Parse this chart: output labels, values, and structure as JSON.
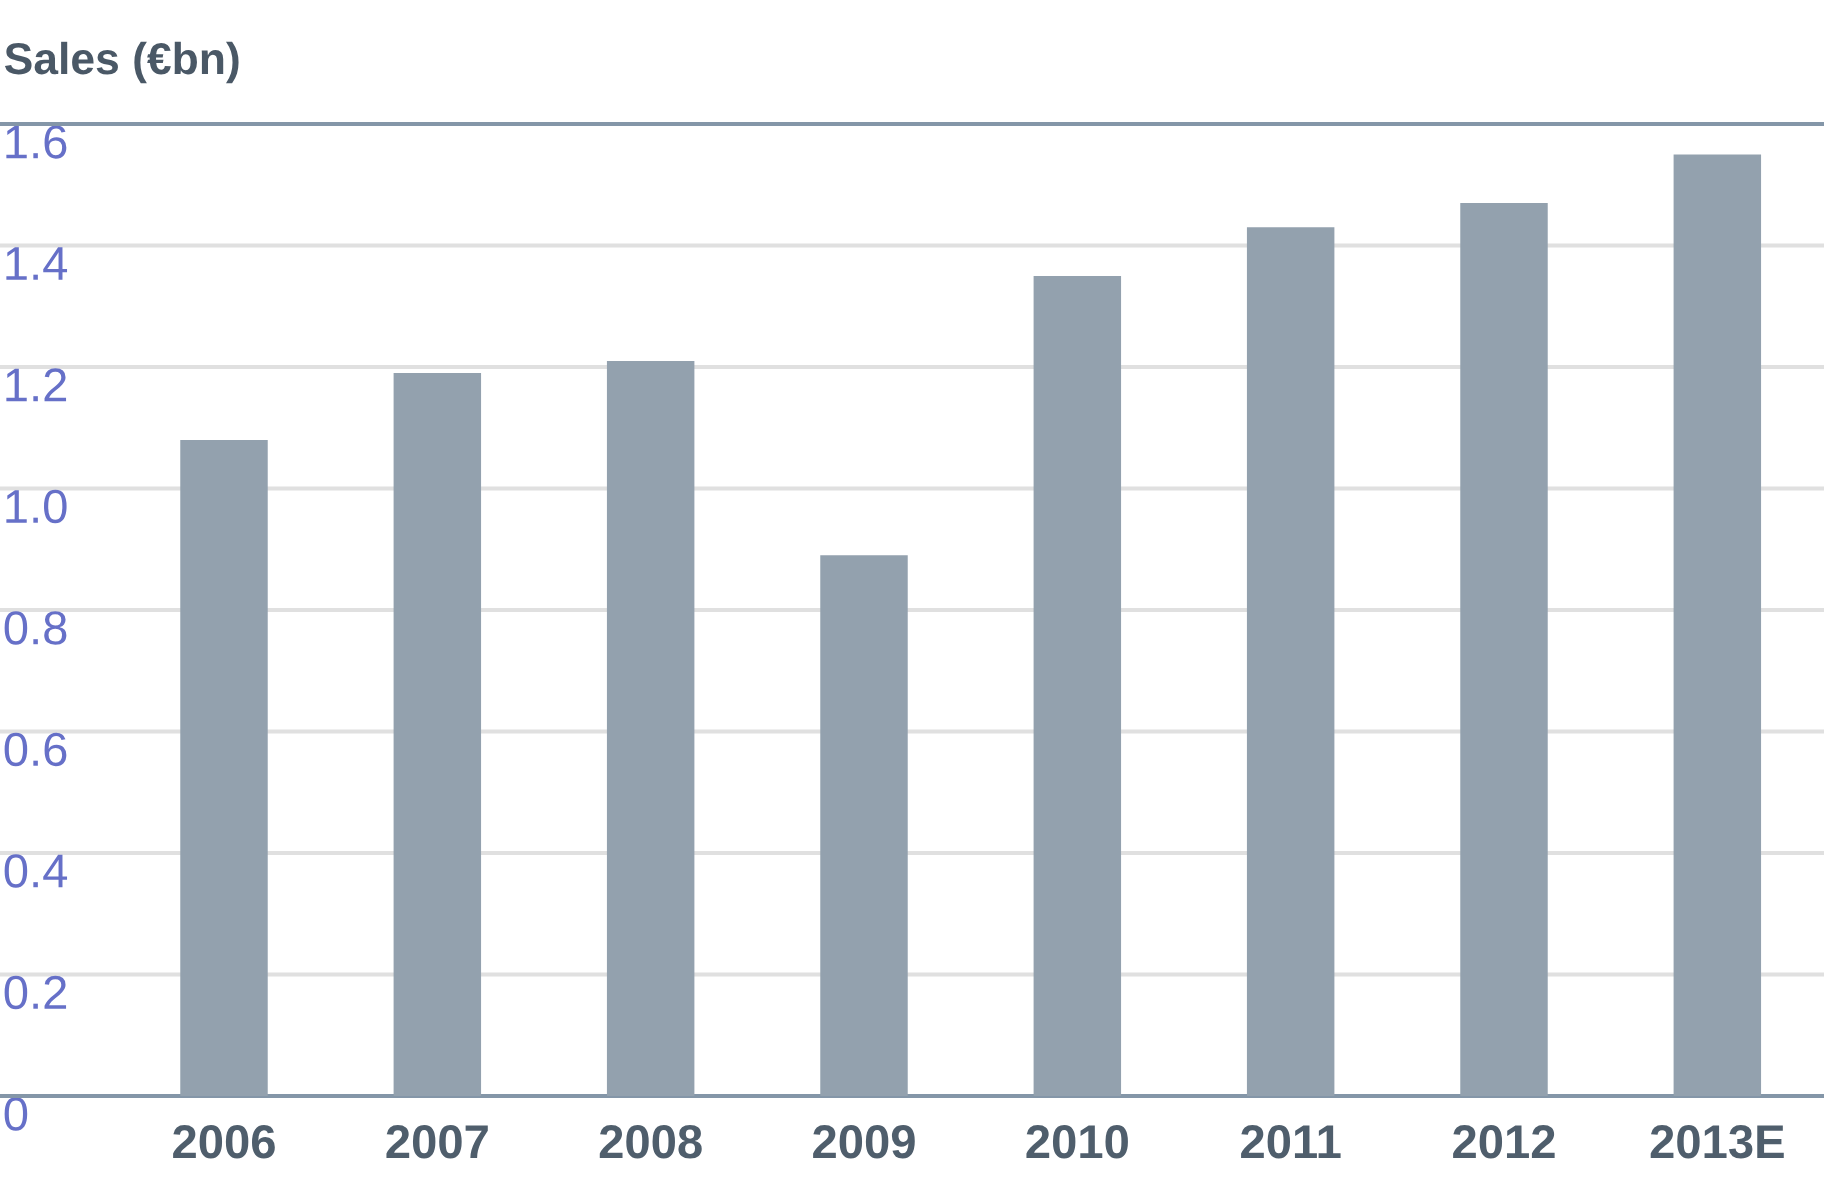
{
  "chart_data": {
    "type": "bar",
    "title": "Sales (€bn)",
    "categories": [
      "2006",
      "2007",
      "2008",
      "2009",
      "2010",
      "2011",
      "2012",
      "2013E"
    ],
    "values": [
      1.08,
      1.19,
      1.21,
      0.89,
      1.35,
      1.43,
      1.47,
      1.55
    ],
    "color": "#93a1ae",
    "ylim": [
      0,
      1.6
    ],
    "yticks": [
      0,
      0.2,
      0.4,
      0.6,
      0.8,
      {
        "value": 1.0,
        "label": "1.0"
      },
      1.2,
      1.4,
      1.6
    ],
    "grid": "y"
  }
}
